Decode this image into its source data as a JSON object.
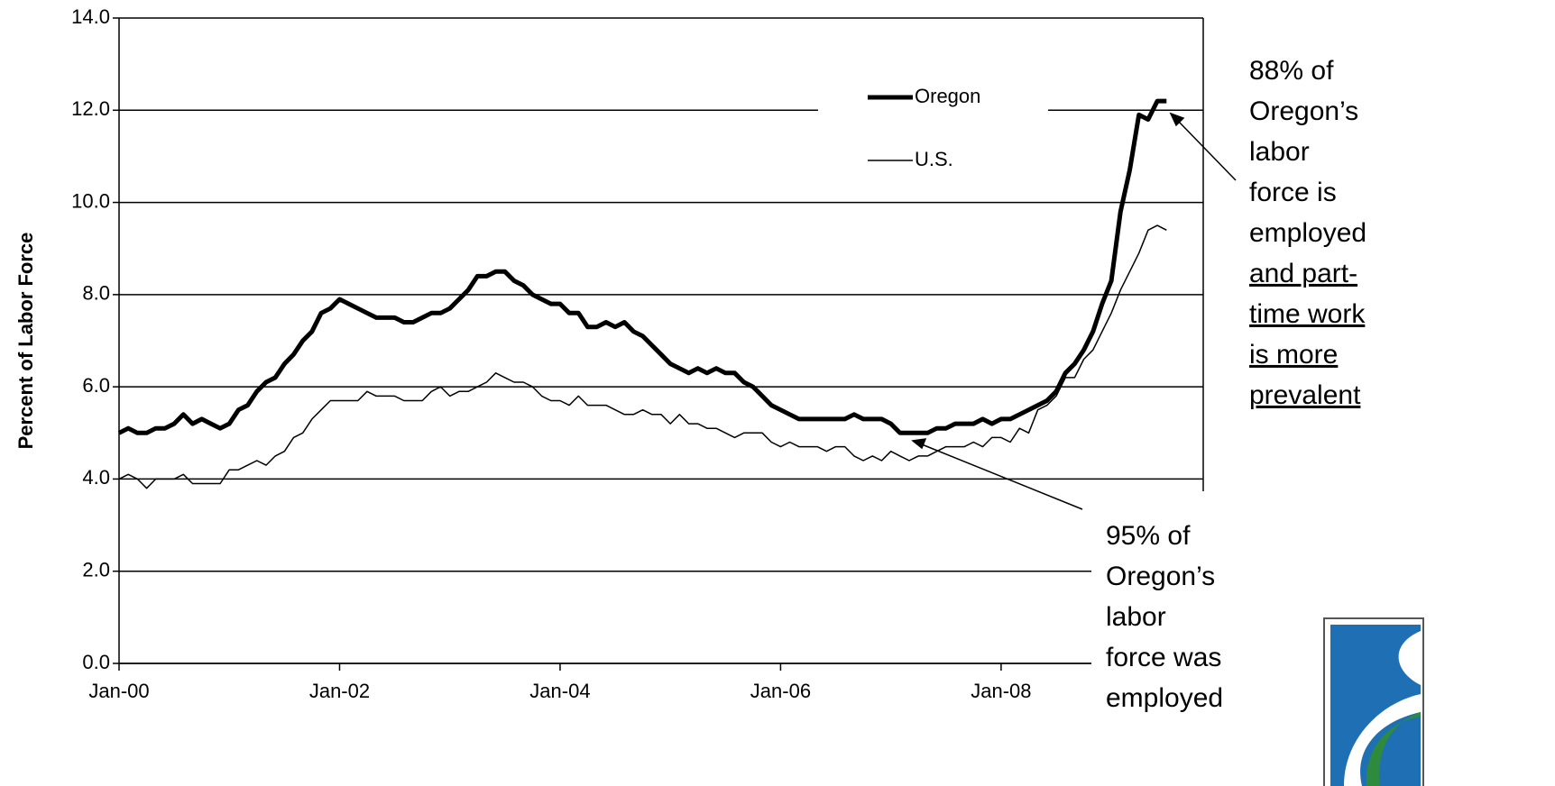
{
  "chart_data": {
    "type": "line",
    "y_label": "Percent of Labor Force",
    "categories": [
      "Jan-00",
      null,
      null,
      null,
      null,
      null,
      null,
      null,
      null,
      null,
      null,
      null,
      null,
      null,
      null,
      null,
      null,
      null,
      null,
      null,
      null,
      null,
      null,
      null,
      "Jan-02",
      null,
      null,
      null,
      null,
      null,
      null,
      null,
      null,
      null,
      null,
      null,
      null,
      null,
      null,
      null,
      null,
      null,
      null,
      null,
      null,
      null,
      null,
      null,
      "Jan-04",
      null,
      null,
      null,
      null,
      null,
      null,
      null,
      null,
      null,
      null,
      null,
      null,
      null,
      null,
      null,
      null,
      null,
      null,
      null,
      null,
      null,
      null,
      null,
      "Jan-06",
      null,
      null,
      null,
      null,
      null,
      null,
      null,
      null,
      null,
      null,
      null,
      null,
      null,
      null,
      null,
      null,
      null,
      null,
      null,
      null,
      null,
      null,
      null,
      "Jan-08",
      null,
      null,
      null,
      null,
      null,
      null,
      null,
      null,
      null,
      null,
      null,
      null,
      null,
      null,
      null,
      null,
      null,
      null,
      null,
      null,
      null,
      null
    ],
    "series": [
      {
        "name": "Oregon",
        "color": "#000000",
        "width": 5,
        "values": [
          5.0,
          5.1,
          5.0,
          5.0,
          5.1,
          5.1,
          5.2,
          5.4,
          5.2,
          5.3,
          5.2,
          5.1,
          5.2,
          5.5,
          5.6,
          5.9,
          6.1,
          6.2,
          6.5,
          6.7,
          7.0,
          7.2,
          7.6,
          7.7,
          7.9,
          7.8,
          7.7,
          7.6,
          7.5,
          7.5,
          7.5,
          7.4,
          7.4,
          7.5,
          7.6,
          7.6,
          7.7,
          7.9,
          8.1,
          8.4,
          8.4,
          8.5,
          8.5,
          8.3,
          8.2,
          8.0,
          7.9,
          7.8,
          7.8,
          7.6,
          7.6,
          7.3,
          7.3,
          7.4,
          7.3,
          7.4,
          7.2,
          7.1,
          6.9,
          6.7,
          6.5,
          6.4,
          6.3,
          6.4,
          6.3,
          6.4,
          6.3,
          6.3,
          6.1,
          6.0,
          5.8,
          5.6,
          5.5,
          5.4,
          5.3,
          5.3,
          5.3,
          5.3,
          5.3,
          5.3,
          5.4,
          5.3,
          5.3,
          5.3,
          5.2,
          5.0,
          5.0,
          5.0,
          5.0,
          5.1,
          5.1,
          5.2,
          5.2,
          5.2,
          5.3,
          5.2,
          5.3,
          5.3,
          5.4,
          5.5,
          5.6,
          5.7,
          5.9,
          6.3,
          6.5,
          6.8,
          7.2,
          7.8,
          8.3,
          9.8,
          10.7,
          11.9,
          11.8,
          12.2,
          12.2,
          null,
          null,
          null,
          null
        ]
      },
      {
        "name": "U.S.",
        "color": "#000000",
        "width": 1.5,
        "values": [
          4.0,
          4.1,
          4.0,
          3.8,
          4.0,
          4.0,
          4.0,
          4.1,
          3.9,
          3.9,
          3.9,
          3.9,
          4.2,
          4.2,
          4.3,
          4.4,
          4.3,
          4.5,
          4.6,
          4.9,
          5.0,
          5.3,
          5.5,
          5.7,
          5.7,
          5.7,
          5.7,
          5.9,
          5.8,
          5.8,
          5.8,
          5.7,
          5.7,
          5.7,
          5.9,
          6.0,
          5.8,
          5.9,
          5.9,
          6.0,
          6.1,
          6.3,
          6.2,
          6.1,
          6.1,
          6.0,
          5.8,
          5.7,
          5.7,
          5.6,
          5.8,
          5.6,
          5.6,
          5.6,
          5.5,
          5.4,
          5.4,
          5.5,
          5.4,
          5.4,
          5.2,
          5.4,
          5.2,
          5.2,
          5.1,
          5.1,
          5.0,
          4.9,
          5.0,
          5.0,
          5.0,
          4.8,
          4.7,
          4.8,
          4.7,
          4.7,
          4.7,
          4.6,
          4.7,
          4.7,
          4.5,
          4.4,
          4.5,
          4.4,
          4.6,
          4.5,
          4.4,
          4.5,
          4.5,
          4.6,
          4.7,
          4.7,
          4.7,
          4.8,
          4.7,
          4.9,
          4.9,
          4.8,
          5.1,
          5.0,
          5.5,
          5.6,
          5.8,
          6.2,
          6.2,
          6.6,
          6.8,
          7.2,
          7.6,
          8.1,
          8.5,
          8.9,
          9.4,
          9.5,
          9.4,
          null,
          null,
          null,
          null
        ]
      }
    ],
    "ylim": [
      0,
      14
    ],
    "yticks": [
      {
        "value": 0,
        "label": "0.0"
      },
      {
        "value": 2,
        "label": "2.0"
      },
      {
        "value": 4,
        "label": "4.0"
      },
      {
        "value": 6,
        "label": "6.0"
      },
      {
        "value": 8,
        "label": "8.0"
      },
      {
        "value": 10,
        "label": "10.0"
      },
      {
        "value": 12,
        "label": "12.0"
      },
      {
        "value": 14,
        "label": "14.0"
      }
    ],
    "grid": true,
    "annotations": [
      {
        "lines": [
          "88% of",
          "Oregon’s",
          "labor",
          "force is",
          "employed"
        ],
        "underlined_lines": [
          "and part-",
          "time work",
          "is more",
          "prevalent"
        ]
      },
      {
        "lines": [
          "95% of",
          "Oregon’s",
          "labor",
          "force was",
          "employed"
        ],
        "underlined_lines": []
      }
    ]
  }
}
